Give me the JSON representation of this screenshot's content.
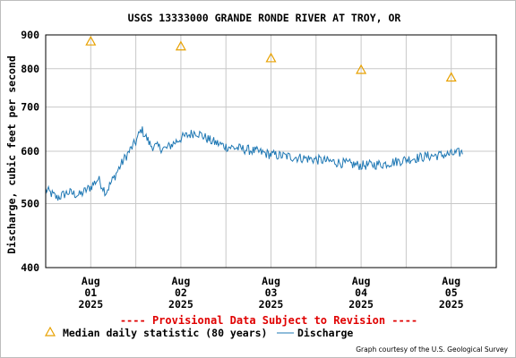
{
  "chart_data": {
    "type": "line",
    "title": "USGS 13333000 GRANDE RONDE RIVER AT TROY, OR",
    "ylabel": "Discharge, cubic feet per second",
    "xlabel": "",
    "y_scale": "log",
    "ylim": [
      400,
      900
    ],
    "y_ticks": [
      400,
      500,
      600,
      700,
      800,
      900
    ],
    "xlim": [
      "2025-07-31T12:00",
      "2025-08-05T12:00"
    ],
    "x_ticks": [
      {
        "date": "2025-08-01",
        "l1": "Aug",
        "l2": "01",
        "l3": "2025"
      },
      {
        "date": "2025-08-02",
        "l1": "Aug",
        "l2": "02",
        "l3": "2025"
      },
      {
        "date": "2025-08-03",
        "l1": "Aug",
        "l2": "03",
        "l3": "2025"
      },
      {
        "date": "2025-08-04",
        "l1": "Aug",
        "l2": "04",
        "l3": "2025"
      },
      {
        "date": "2025-08-05",
        "l1": "Aug",
        "l2": "05",
        "l3": "2025"
      }
    ],
    "grid": true,
    "series": [
      {
        "name": "Median daily statistic (80 years)",
        "type": "scatter",
        "marker": "triangle",
        "color": "#e8a100",
        "points": [
          {
            "x": "2025-08-01T00:00",
            "y": 880
          },
          {
            "x": "2025-08-02T00:00",
            "y": 865
          },
          {
            "x": "2025-08-03T00:00",
            "y": 830
          },
          {
            "x": "2025-08-04T00:00",
            "y": 797
          },
          {
            "x": "2025-08-05T00:00",
            "y": 776
          }
        ]
      },
      {
        "name": "Discharge",
        "type": "line",
        "color": "#1f78b4",
        "points": [
          {
            "x": "2025-07-31T12:00",
            "y": 525
          },
          {
            "x": "2025-07-31T15:00",
            "y": 510
          },
          {
            "x": "2025-07-31T18:00",
            "y": 520
          },
          {
            "x": "2025-07-31T21:00",
            "y": 515
          },
          {
            "x": "2025-08-01T00:00",
            "y": 530
          },
          {
            "x": "2025-08-01T02:00",
            "y": 545
          },
          {
            "x": "2025-08-01T04:00",
            "y": 520
          },
          {
            "x": "2025-08-01T06:00",
            "y": 545
          },
          {
            "x": "2025-08-01T09:00",
            "y": 585
          },
          {
            "x": "2025-08-01T12:00",
            "y": 620
          },
          {
            "x": "2025-08-01T13:30",
            "y": 648
          },
          {
            "x": "2025-08-01T16:00",
            "y": 612
          },
          {
            "x": "2025-08-01T20:00",
            "y": 605
          },
          {
            "x": "2025-08-02T00:00",
            "y": 628
          },
          {
            "x": "2025-08-02T04:00",
            "y": 642
          },
          {
            "x": "2025-08-02T08:00",
            "y": 622
          },
          {
            "x": "2025-08-02T12:00",
            "y": 610
          },
          {
            "x": "2025-08-02T18:00",
            "y": 603
          },
          {
            "x": "2025-08-03T00:00",
            "y": 593
          },
          {
            "x": "2025-08-03T06:00",
            "y": 588
          },
          {
            "x": "2025-08-03T12:00",
            "y": 583
          },
          {
            "x": "2025-08-03T18:00",
            "y": 577
          },
          {
            "x": "2025-08-04T00:00",
            "y": 571
          },
          {
            "x": "2025-08-04T06:00",
            "y": 574
          },
          {
            "x": "2025-08-04T12:00",
            "y": 583
          },
          {
            "x": "2025-08-04T18:00",
            "y": 590
          },
          {
            "x": "2025-08-05T00:00",
            "y": 594
          },
          {
            "x": "2025-08-05T03:00",
            "y": 598
          }
        ]
      }
    ]
  },
  "banner": "---- Provisional Data Subject to Revision ----",
  "banner_color": "#e00000",
  "legend": {
    "median_label": "Median daily statistic (80 years)",
    "discharge_label": "Discharge"
  },
  "credit": "Graph courtesy of the U.S. Geological Survey"
}
